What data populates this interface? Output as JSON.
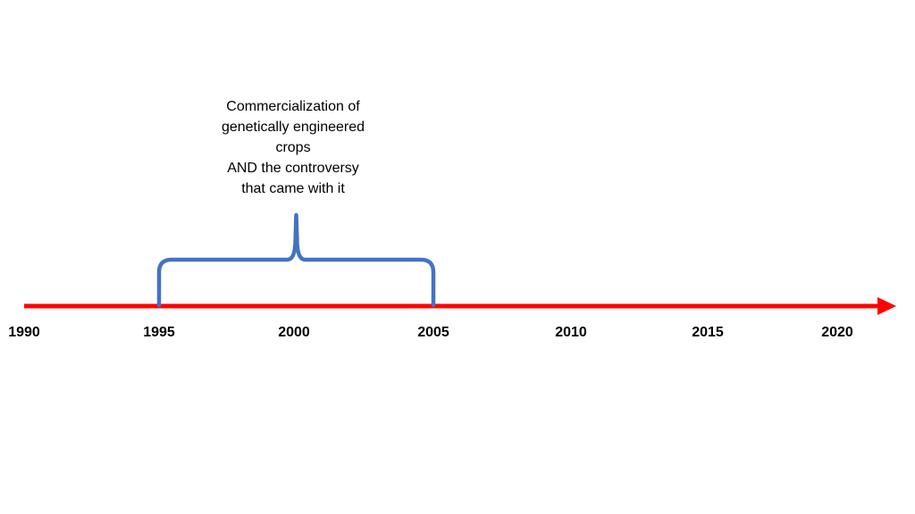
{
  "timeline": {
    "axis_color": "#ff0000",
    "years": [
      {
        "label": "1990",
        "year": 1990
      },
      {
        "label": "1995",
        "year": 1995
      },
      {
        "label": "2000",
        "year": 2000
      },
      {
        "label": "2005",
        "year": 2005
      },
      {
        "label": "2010",
        "year": 2010
      },
      {
        "label": "2015",
        "year": 2015
      },
      {
        "label": "2020",
        "year": 2020
      }
    ]
  },
  "event": {
    "start_year": 1995,
    "end_year": 2005,
    "bracket_color": "#4472c4",
    "text_lines": [
      "Commercialization of",
      "genetically engineered",
      "crops",
      "AND the controversy",
      "that came with it"
    ]
  }
}
